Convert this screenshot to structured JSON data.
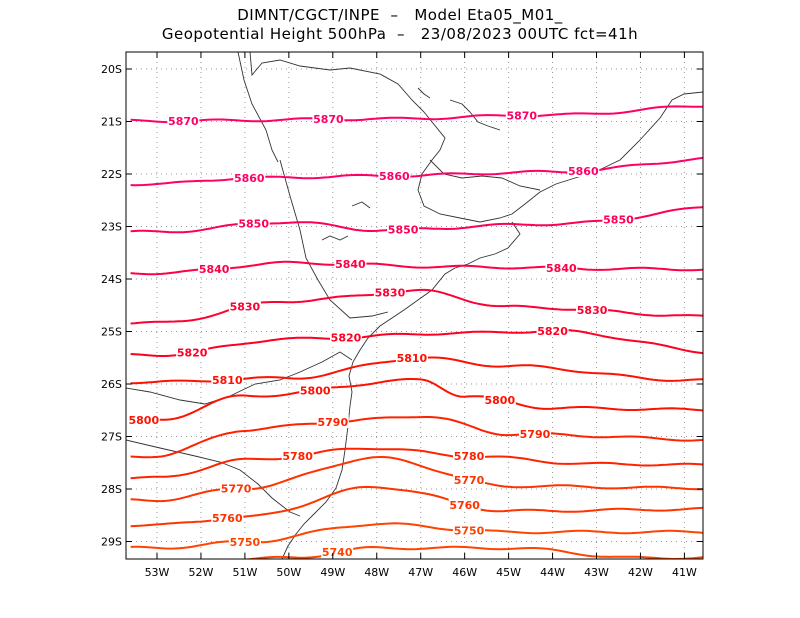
{
  "header": {
    "line1": "DIMNT/CGCT/INPE  –   Model Eta05_M01_",
    "line2": "Geopotential Height 500hPa  –   23/08/2023 00UTC fct=41h"
  },
  "axes": {
    "lat_labels": [
      "20S",
      "21S",
      "22S",
      "23S",
      "24S",
      "25S",
      "26S",
      "27S",
      "28S",
      "29S"
    ],
    "lon_labels": [
      "53W",
      "52W",
      "51W",
      "50W",
      "49W",
      "48W",
      "47W",
      "46W",
      "45W",
      "44W",
      "43W",
      "42W",
      "41W"
    ]
  },
  "chart_data": {
    "type": "contour-map",
    "title": "Geopotential Height 500hPa",
    "field": "geopotential height (gpm)",
    "levels": [
      {
        "value": 5870,
        "label": "5870",
        "color": "#ff0066",
        "labels_at_lon": [
          -52.4,
          -49.1,
          -44.7
        ]
      },
      {
        "value": 5860,
        "label": "5860",
        "color": "#ff0066",
        "labels_at_lon": [
          -50.9,
          -47.6,
          -43.3
        ]
      },
      {
        "value": 5850,
        "label": "5850",
        "color": "#ff0055",
        "labels_at_lon": [
          -50.8,
          -47.4,
          -42.5
        ]
      },
      {
        "value": 5840,
        "label": "5840",
        "color": "#ff0044",
        "labels_at_lon": [
          -51.7,
          -48.6,
          -43.8
        ]
      },
      {
        "value": 5830,
        "label": "5830",
        "color": "#ff0033",
        "labels_at_lon": [
          -51.0,
          -47.7,
          -43.1
        ]
      },
      {
        "value": 5820,
        "label": "5820",
        "color": "#ff0022",
        "labels_at_lon": [
          -52.2,
          -48.7,
          -44.0
        ]
      },
      {
        "value": 5810,
        "label": "5810",
        "color": "#ff1100",
        "labels_at_lon": [
          -51.4,
          -47.2
        ]
      },
      {
        "value": 5800,
        "label": "5800",
        "color": "#ff1100",
        "labels_at_lon": [
          -53.3,
          -49.4,
          -45.2
        ]
      },
      {
        "value": 5790,
        "label": "5790",
        "color": "#ff2200",
        "labels_at_lon": [
          -49.0,
          -44.4
        ]
      },
      {
        "value": 5780,
        "label": "5780",
        "color": "#ff2200",
        "labels_at_lon": [
          -49.8,
          -45.9
        ]
      },
      {
        "value": 5770,
        "label": "5770",
        "color": "#ff3300",
        "labels_at_lon": [
          -51.2,
          -45.9
        ]
      },
      {
        "value": 5760,
        "label": "5760",
        "color": "#ff3300",
        "labels_at_lon": [
          -51.4,
          -46.0
        ]
      },
      {
        "value": 5750,
        "label": "5750",
        "color": "#ff4400",
        "labels_at_lon": [
          -51.0,
          -45.9
        ]
      },
      {
        "value": 5740,
        "label": "5740",
        "color": "#ff4400",
        "labels_at_lon": [
          -48.9
        ]
      }
    ],
    "lon_range": [
      -53.6,
      -40.5
    ],
    "lat_range": [
      -29.4,
      -19.6
    ],
    "grid": true
  }
}
